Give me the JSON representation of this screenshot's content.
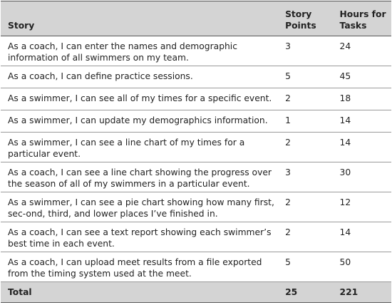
{
  "headers": {
    "story": "Story",
    "points": "Story Points",
    "hours": "Hours for Tasks"
  },
  "rows": [
    {
      "story": "As a coach, I can enter the names and demographic information of all swimmers on my team.",
      "points": "3",
      "hours": "24"
    },
    {
      "story": "As a coach, I can define practice sessions.",
      "points": "5",
      "hours": "45"
    },
    {
      "story": "As a swimmer, I can see all of my times for a specific event.",
      "points": "2",
      "hours": "18"
    },
    {
      "story": "As a swimmer, I can update my demographics information.",
      "points": "1",
      "hours": "14"
    },
    {
      "story": "As a swimmer, I can see a line chart of my times for a particular event.",
      "points": "2",
      "hours": "14"
    },
    {
      "story": "As a coach, I can see a line chart showing the progress over the season of all of my swimmers in a particular event.",
      "points": "3",
      "hours": "30"
    },
    {
      "story": "As a swimmer, I can see a pie chart showing how many first, sec-ond, third, and lower places I’ve finished in.",
      "points": "2",
      "hours": "12"
    },
    {
      "story": "As a coach, I can see a text report showing each swimmer’s best time in each event.",
      "points": "2",
      "hours": "14"
    },
    {
      "story": "As a coach, I can upload meet results from a file exported from the timing system used at the meet.",
      "points": "5",
      "hours": "50"
    }
  ],
  "total": {
    "label": "Total",
    "points": "25",
    "hours": "221"
  }
}
